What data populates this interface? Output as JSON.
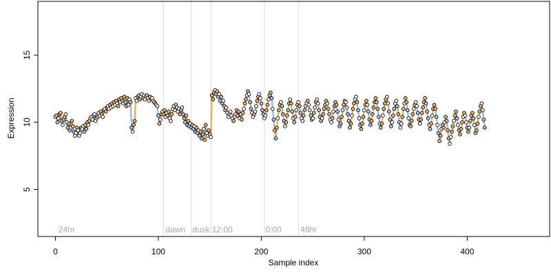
{
  "chart_data": {
    "type": "scatter",
    "title": "",
    "xlabel": "Sample index",
    "ylabel": "Expression",
    "xlim": [
      -17,
      480
    ],
    "ylim": [
      1.5,
      19
    ],
    "x_ticks": [
      0,
      100,
      200,
      300,
      400
    ],
    "y_ticks": [
      5,
      10,
      15
    ],
    "grid": false,
    "legend": "none",
    "colors": {
      "point_stroke": "#000000",
      "point_fill_light": "#ffffff",
      "point_fill_blue": "#a9c8ee",
      "point_fill_orange": "#f1b46a",
      "trace_gray": "#b4b4b4",
      "trace_orange": "#f0a848",
      "trace_blue": "#8fb4e2",
      "divider": "#dddddd",
      "annotation": "#a8a8a8"
    },
    "phase_lines": [
      105,
      132,
      151,
      203,
      236
    ],
    "phase_labels": [
      {
        "x": 3,
        "text": "24hr"
      },
      {
        "x": 107,
        "text": "dawn"
      },
      {
        "x": 133,
        "text": "dusk"
      },
      {
        "x": 152,
        "text": "12:00"
      },
      {
        "x": 204,
        "text": "0:00"
      },
      {
        "x": 238,
        "text": "48hr"
      }
    ],
    "series": [
      {
        "values": [
          10.4,
          10.5,
          10.0,
          10.3,
          10.6,
          10.7,
          10.1,
          9.8,
          10.2,
          10.4,
          10.6,
          10.0,
          9.6,
          9.9,
          9.4,
          9.6,
          10.1,
          9.7,
          9.3,
          9.0,
          9.2,
          9.6,
          9.4,
          9.0,
          9.2,
          9.6,
          9.5,
          9.7,
          9.3,
          9.8,
          9.5,
          10.0,
          9.8,
          10.1,
          10.3,
          10.4,
          10.2,
          10.5,
          10.6,
          10.1,
          10.3,
          10.4,
          10.7,
          10.5,
          10.8,
          10.6,
          10.4,
          10.9,
          11.0,
          10.8,
          11.1,
          11.2,
          11.0,
          11.3,
          11.1,
          11.4,
          11.2,
          11.5,
          11.3,
          11.6,
          11.4,
          11.2,
          11.7,
          11.5,
          11.8,
          11.6,
          11.4,
          11.9,
          11.5,
          11.2,
          11.8,
          11.3,
          11.7,
          11.5,
          9.6,
          9.3,
          9.8,
          10.1,
          11.8,
          11.6,
          11.9,
          12.0,
          11.7,
          11.9,
          12.1,
          11.8,
          12.0,
          11.7,
          11.9,
          12.0,
          11.8,
          11.6,
          11.9,
          11.7,
          11.8,
          11.6,
          11.5,
          11.4,
          11.3,
          11.2,
          10.5,
          9.9,
          10.2,
          10.6,
          10.8,
          10.6,
          10.9,
          10.4,
          10.7,
          10.5,
          10.8,
          10.3,
          10.1,
          10.6,
          11.0,
          11.2,
          10.9,
          11.3,
          11.1,
          10.8,
          11.0,
          10.6,
          10.9,
          11.1,
          10.6,
          10.3,
          10.0,
          10.5,
          9.8,
          10.1,
          9.7,
          9.9,
          9.6,
          9.8,
          9.5,
          9.7,
          9.3,
          9.6,
          9.2,
          9.4,
          9.0,
          9.3,
          8.8,
          9.1,
          9.5,
          8.7,
          9.8,
          9.2,
          9.0,
          9.4,
          9.1,
          8.9,
          12.0,
          11.7,
          12.2,
          12.4,
          12.1,
          12.3,
          11.9,
          12.1,
          11.6,
          11.9,
          11.4,
          11.6,
          11.2,
          10.9,
          11.1,
          10.7,
          10.4,
          10.6,
          10.8,
          10.5,
          10.3,
          10.1,
          10.4,
          10.6,
          10.9,
          10.5,
          10.8,
          10.3,
          10.6,
          10.2,
          10.7,
          11.0,
          11.4,
          11.7,
          12.0,
          12.3,
          12.1,
          11.5,
          11.0,
          10.7,
          10.4,
          10.6,
          10.8,
          11.2,
          11.6,
          11.9,
          12.1,
          11.8,
          11.4,
          10.9,
          10.6,
          10.3,
          10.5,
          10.9,
          11.3,
          11.7,
          12.0,
          12.2,
          11.8,
          11.0,
          10.2,
          9.4,
          8.8,
          9.6,
          10.3,
          10.9,
          11.3,
          11.5,
          11.2,
          10.6,
          10.1,
          9.7,
          10.0,
          10.5,
          10.9,
          11.4,
          11.7,
          11.4,
          10.8,
          10.3,
          10.0,
          10.4,
          10.9,
          11.3,
          11.5,
          11.2,
          10.7,
          10.3,
          10.1,
          10.5,
          10.9,
          11.2,
          11.4,
          11.6,
          11.3,
          10.9,
          10.5,
          10.2,
          10.3,
          10.7,
          11.1,
          11.5,
          11.7,
          11.4,
          10.9,
          10.4,
          10.1,
          10.3,
          10.6,
          11.0,
          11.3,
          11.6,
          11.4,
          11.0,
          10.6,
          10.2,
          10.0,
          10.3,
          10.8,
          11.2,
          11.5,
          11.3,
          10.8,
          10.2,
          9.7,
          9.9,
          10.4,
          10.9,
          11.3,
          11.6,
          11.5,
          11.1,
          10.6,
          10.1,
          9.6,
          9.9,
          10.5,
          11.0,
          11.4,
          11.7,
          11.9,
          11.5,
          10.9,
          10.3,
          9.8,
          9.5,
          9.9,
          10.4,
          10.9,
          11.3,
          11.6,
          11.3,
          10.8,
          10.2,
          9.8,
          10.1,
          10.6,
          11.1,
          11.5,
          11.8,
          11.5,
          11.0,
          10.4,
          9.9,
          9.6,
          9.9,
          10.5,
          11.0,
          11.4,
          11.7,
          11.9,
          11.4,
          10.8,
          10.2,
          9.7,
          10.0,
          10.5,
          11.0,
          11.4,
          11.6,
          11.2,
          10.6,
          10.0,
          9.6,
          9.9,
          10.4,
          11.0,
          11.4,
          11.8,
          11.5,
          10.9,
          10.3,
          9.8,
          9.7,
          10.1,
          10.6,
          11.0,
          11.3,
          11.5,
          11.2,
          10.7,
          10.2,
          9.9,
          10.2,
          10.7,
          11.1,
          11.5,
          11.8,
          11.4,
          10.8,
          10.3,
          9.8,
          9.5,
          9.9,
          10.5,
          11.0,
          11.3,
          11.0,
          10.4,
          9.8,
          9.2,
          8.6,
          9.0,
          9.5,
          9.8,
          9.6,
          10.0,
          10.4,
          10.1,
          9.4,
          8.8,
          8.4,
          8.9,
          9.3,
          9.7,
          10.1,
          10.5,
          10.8,
          10.3,
          9.8,
          9.4,
          9.1,
          9.5,
          10.0,
          10.4,
          10.7,
          10.5,
          10.0,
          9.6,
          9.3,
          9.6,
          10.1,
          10.5,
          10.7,
          10.3,
          9.8,
          9.2,
          9.4,
          9.9,
          10.4,
          10.8,
          11.2,
          11.4,
          10.9,
          10.2,
          9.6
        ]
      }
    ]
  }
}
